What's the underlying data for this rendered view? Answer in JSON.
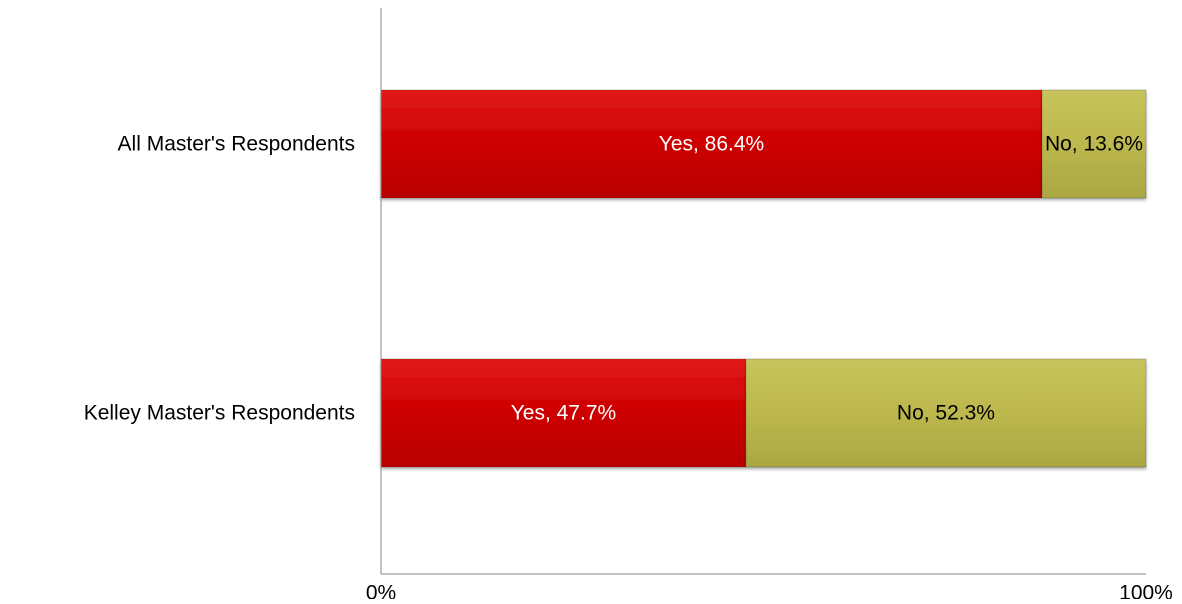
{
  "chart_data": {
    "type": "bar",
    "orientation": "horizontal",
    "stacked": true,
    "percent_stacked": true,
    "categories": [
      "All Master's Respondents",
      "Kelley Master's Respondents"
    ],
    "series": [
      {
        "name": "Yes",
        "values": [
          86.4,
          47.7
        ],
        "labels": [
          "Yes, 86.4%",
          "Yes, 47.7%"
        ],
        "color": "#cc0000",
        "label_color": "#ffffff"
      },
      {
        "name": "No",
        "values": [
          13.6,
          52.3
        ],
        "labels": [
          "No, 13.6%",
          "No, 52.3%"
        ],
        "color": "#bcb84e",
        "label_color": "#000000"
      }
    ],
    "xlim": [
      0,
      100
    ],
    "x_ticks": [
      "0%",
      "100%"
    ],
    "title": "",
    "xlabel": "",
    "ylabel": "",
    "grid": false,
    "legend": "none"
  }
}
